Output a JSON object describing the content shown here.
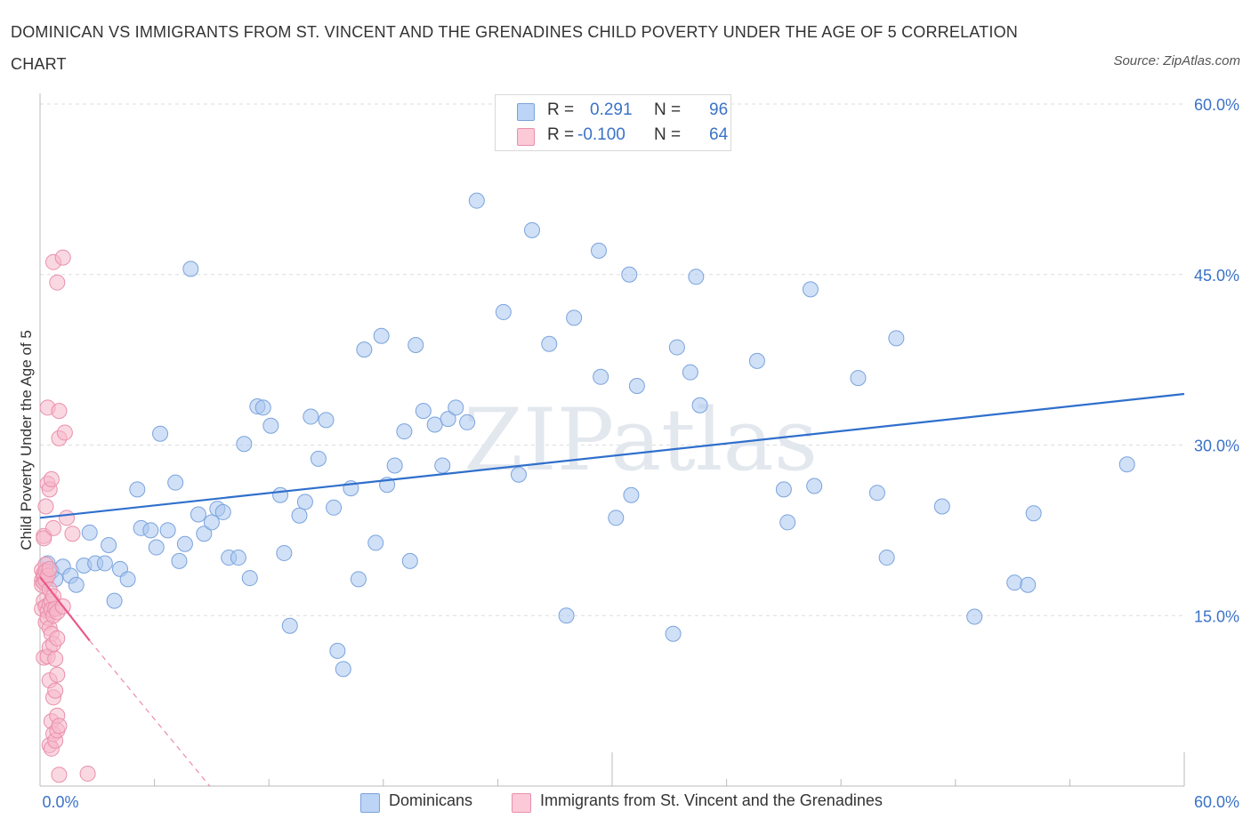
{
  "title": "DOMINICAN VS IMMIGRANTS FROM ST. VINCENT AND THE GRENADINES CHILD POVERTY UNDER THE AGE OF 5 CORRELATION CHART",
  "source": "Source: ZipAtlas.com",
  "watermark": "ZIPatlas",
  "stats": {
    "r_label": "R =",
    "n_label": "N =",
    "rows": [
      {
        "r": "0.291",
        "n": "96",
        "color": "#a9c6f0"
      },
      {
        "r": "-0.100",
        "n": "64",
        "color": "#f6b8cb"
      }
    ]
  },
  "legend": {
    "items": [
      {
        "label": "Dominicans",
        "color": "#a9c6f0"
      },
      {
        "label": "Immigrants from St. Vincent and the Grenadines",
        "color": "#f6b8cb"
      }
    ]
  },
  "chart_data": {
    "type": "scatter",
    "ylabel": "Child Poverty Under the Age of 5",
    "xlim": [
      0,
      60
    ],
    "ylim": [
      0,
      60
    ],
    "x_tick_labels": [
      "0.0%",
      "60.0%"
    ],
    "y_tick_labels": [
      "15.0%",
      "30.0%",
      "45.0%",
      "60.0%"
    ],
    "y_ticks": [
      15,
      30,
      45,
      60
    ],
    "grid": true,
    "legend_position": "bottom",
    "series": [
      {
        "name": "Dominicans",
        "color": "#a9c6f0",
        "stroke": "#7aa3dc",
        "trend": {
          "x": [
            0,
            60
          ],
          "y": [
            23.6,
            34.5
          ],
          "color": "#2f6fcc",
          "dashed_to": null
        },
        "points": [
          [
            0.4,
            19.6
          ],
          [
            0.6,
            18.9
          ],
          [
            0.8,
            18.2
          ],
          [
            1.2,
            19.3
          ],
          [
            1.6,
            18.5
          ],
          [
            1.9,
            17.7
          ],
          [
            2.3,
            19.4
          ],
          [
            2.6,
            22.3
          ],
          [
            2.9,
            19.6
          ],
          [
            3.4,
            19.6
          ],
          [
            3.6,
            21.2
          ],
          [
            3.9,
            16.3
          ],
          [
            4.2,
            19.1
          ],
          [
            4.6,
            18.2
          ],
          [
            5.1,
            26.1
          ],
          [
            5.3,
            22.7
          ],
          [
            5.8,
            22.5
          ],
          [
            6.1,
            21.0
          ],
          [
            6.3,
            31.0
          ],
          [
            6.7,
            22.5
          ],
          [
            7.1,
            26.7
          ],
          [
            7.3,
            19.8
          ],
          [
            7.6,
            21.3
          ],
          [
            7.9,
            45.5
          ],
          [
            8.3,
            23.9
          ],
          [
            8.6,
            22.2
          ],
          [
            9.0,
            23.2
          ],
          [
            9.3,
            24.4
          ],
          [
            9.6,
            24.1
          ],
          [
            9.9,
            20.1
          ],
          [
            10.4,
            20.1
          ],
          [
            10.7,
            30.1
          ],
          [
            11.0,
            18.3
          ],
          [
            11.4,
            33.4
          ],
          [
            11.7,
            33.3
          ],
          [
            12.1,
            31.7
          ],
          [
            12.6,
            25.6
          ],
          [
            12.8,
            20.5
          ],
          [
            13.1,
            14.1
          ],
          [
            13.6,
            23.8
          ],
          [
            13.9,
            25.0
          ],
          [
            14.2,
            32.5
          ],
          [
            14.6,
            28.8
          ],
          [
            15.0,
            32.2
          ],
          [
            15.4,
            24.5
          ],
          [
            15.6,
            11.9
          ],
          [
            15.9,
            10.3
          ],
          [
            16.3,
            26.2
          ],
          [
            16.7,
            18.2
          ],
          [
            17.0,
            38.4
          ],
          [
            17.6,
            21.4
          ],
          [
            17.9,
            39.6
          ],
          [
            18.2,
            26.5
          ],
          [
            18.6,
            28.2
          ],
          [
            19.1,
            31.2
          ],
          [
            19.4,
            19.8
          ],
          [
            19.7,
            38.8
          ],
          [
            20.1,
            33.0
          ],
          [
            20.7,
            31.8
          ],
          [
            21.1,
            28.2
          ],
          [
            21.4,
            32.3
          ],
          [
            21.8,
            33.3
          ],
          [
            22.4,
            32.0
          ],
          [
            22.9,
            51.5
          ],
          [
            24.3,
            41.7
          ],
          [
            25.1,
            27.4
          ],
          [
            25.8,
            48.9
          ],
          [
            26.7,
            38.9
          ],
          [
            27.6,
            15.0
          ],
          [
            28.0,
            41.2
          ],
          [
            29.3,
            47.1
          ],
          [
            29.4,
            36.0
          ],
          [
            30.2,
            23.6
          ],
          [
            30.9,
            45.0
          ],
          [
            31.0,
            25.6
          ],
          [
            31.3,
            35.2
          ],
          [
            33.2,
            13.4
          ],
          [
            33.4,
            38.6
          ],
          [
            34.1,
            36.4
          ],
          [
            34.4,
            44.8
          ],
          [
            34.6,
            33.5
          ],
          [
            37.6,
            37.4
          ],
          [
            39.0,
            26.1
          ],
          [
            39.2,
            23.2
          ],
          [
            40.4,
            43.7
          ],
          [
            40.6,
            26.4
          ],
          [
            42.9,
            35.9
          ],
          [
            43.9,
            25.8
          ],
          [
            44.4,
            20.1
          ],
          [
            44.9,
            39.4
          ],
          [
            47.3,
            24.6
          ],
          [
            49.0,
            14.9
          ],
          [
            51.1,
            17.9
          ],
          [
            51.8,
            17.7
          ],
          [
            52.1,
            24.0
          ],
          [
            57.0,
            28.3
          ]
        ]
      },
      {
        "name": "Immigrants from St. Vincent and the Grenadines",
        "color": "#f6b8cb",
        "stroke": "#e98fac",
        "trend": {
          "x": [
            0,
            2.6
          ],
          "y": [
            18.4,
            12.8
          ],
          "color": "#e8588a",
          "dashed_to": [
            8.9,
            0
          ]
        },
        "points": [
          [
            0.1,
            19.0
          ],
          [
            0.1,
            18.1
          ],
          [
            0.1,
            17.7
          ],
          [
            0.1,
            15.6
          ],
          [
            0.2,
            22.0
          ],
          [
            0.2,
            21.8
          ],
          [
            0.2,
            18.7
          ],
          [
            0.2,
            18.4
          ],
          [
            0.2,
            17.9
          ],
          [
            0.2,
            16.3
          ],
          [
            0.2,
            11.3
          ],
          [
            0.3,
            24.6
          ],
          [
            0.3,
            19.5
          ],
          [
            0.3,
            18.9
          ],
          [
            0.3,
            18.1
          ],
          [
            0.3,
            15.8
          ],
          [
            0.3,
            14.4
          ],
          [
            0.4,
            33.3
          ],
          [
            0.4,
            26.6
          ],
          [
            0.4,
            18.5
          ],
          [
            0.4,
            15.4
          ],
          [
            0.4,
            14.8
          ],
          [
            0.4,
            11.4
          ],
          [
            0.5,
            26.1
          ],
          [
            0.5,
            19.1
          ],
          [
            0.5,
            17.3
          ],
          [
            0.5,
            16.0
          ],
          [
            0.5,
            13.9
          ],
          [
            0.5,
            12.2
          ],
          [
            0.5,
            9.3
          ],
          [
            0.5,
            3.6
          ],
          [
            0.6,
            27.0
          ],
          [
            0.6,
            16.3
          ],
          [
            0.6,
            15.5
          ],
          [
            0.6,
            13.4
          ],
          [
            0.6,
            5.7
          ],
          [
            0.6,
            3.3
          ],
          [
            0.7,
            46.1
          ],
          [
            0.7,
            22.7
          ],
          [
            0.7,
            16.7
          ],
          [
            0.7,
            15.0
          ],
          [
            0.7,
            12.5
          ],
          [
            0.7,
            7.8
          ],
          [
            0.7,
            4.6
          ],
          [
            0.8,
            15.6
          ],
          [
            0.8,
            11.2
          ],
          [
            0.8,
            8.4
          ],
          [
            0.8,
            4.0
          ],
          [
            0.9,
            44.3
          ],
          [
            0.9,
            15.3
          ],
          [
            0.9,
            13.0
          ],
          [
            0.9,
            9.8
          ],
          [
            0.9,
            6.2
          ],
          [
            0.9,
            4.9
          ],
          [
            1.0,
            33.0
          ],
          [
            1.0,
            30.6
          ],
          [
            1.0,
            5.3
          ],
          [
            1.0,
            1.0
          ],
          [
            1.2,
            46.5
          ],
          [
            1.2,
            15.8
          ],
          [
            1.3,
            31.1
          ],
          [
            1.4,
            23.6
          ],
          [
            1.7,
            22.2
          ],
          [
            2.5,
            1.1
          ]
        ]
      }
    ]
  }
}
